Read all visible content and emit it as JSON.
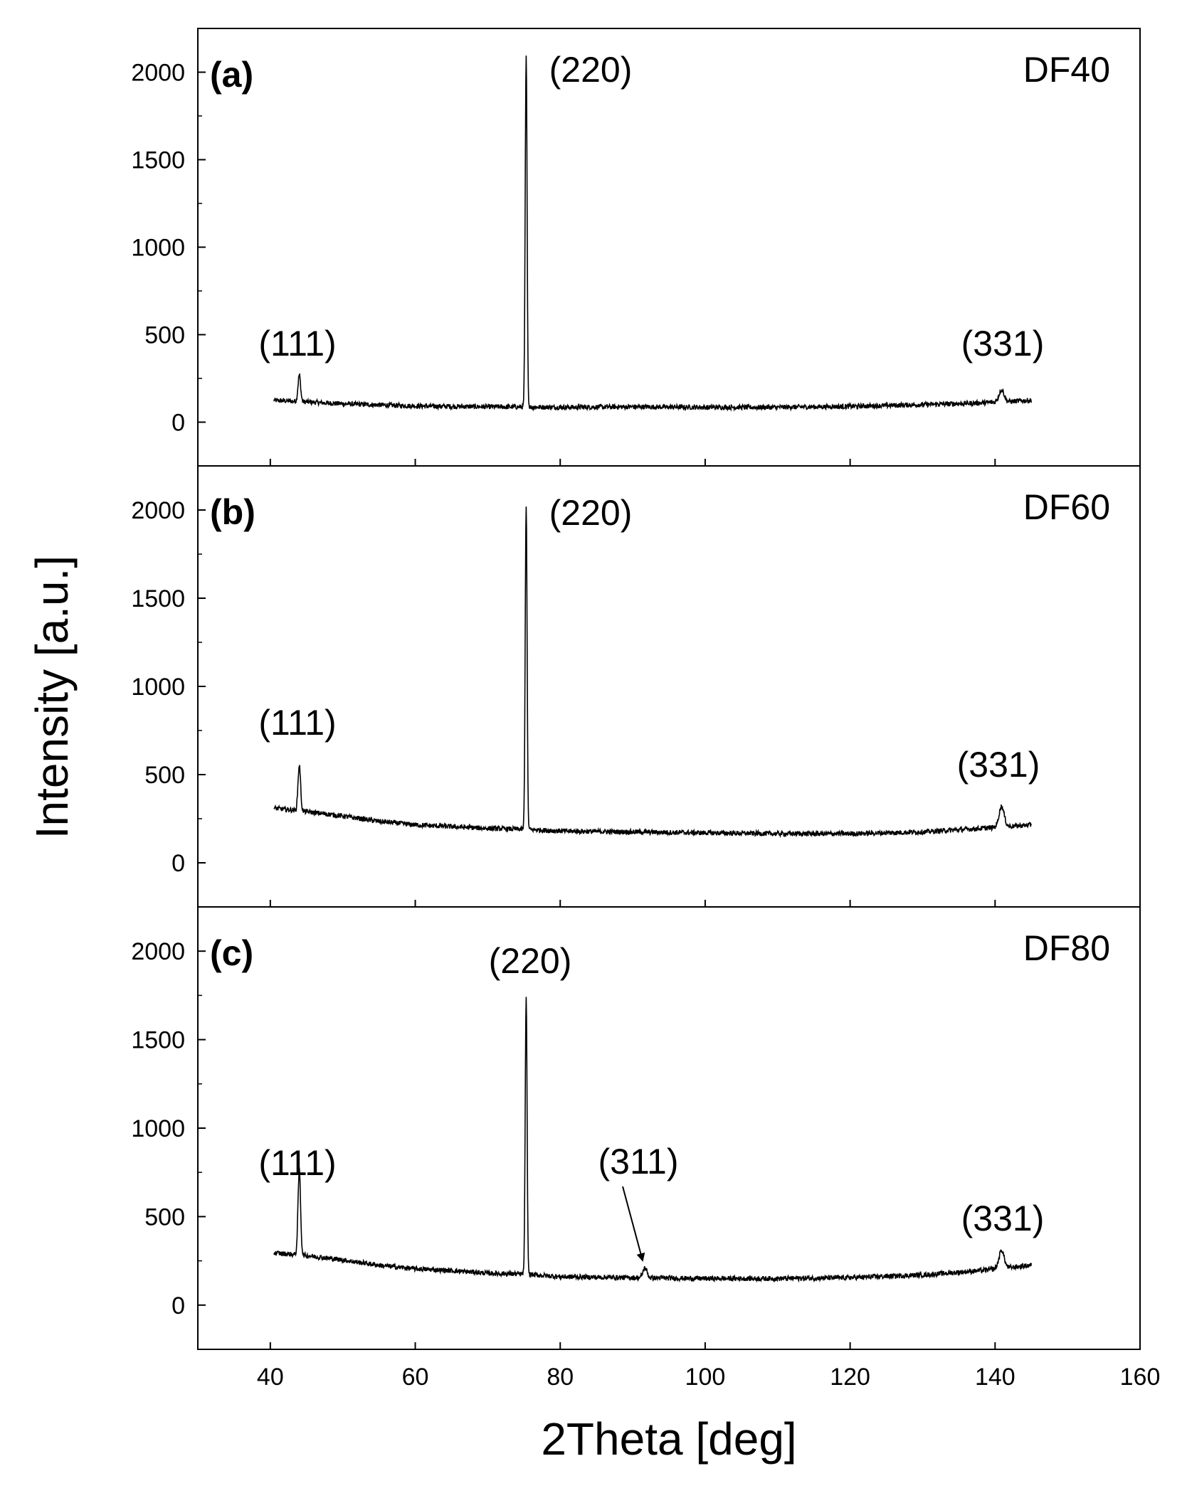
{
  "chart_data": {
    "type": "line",
    "xlabel": "2Theta [deg]",
    "ylabel": "Intensity [a.u.]",
    "xlim": [
      30,
      160
    ],
    "ylim": [
      -250,
      2250
    ],
    "x_ticks": [
      "40",
      "60",
      "80",
      "100",
      "120",
      "140",
      "160"
    ],
    "y_ticks": [
      "0",
      "500",
      "1000",
      "1500",
      "2000"
    ],
    "panels": [
      {
        "letter": "(a)",
        "sample": "DF40",
        "baseline": [
          [
            40.5,
            125
          ],
          [
            50,
            105
          ],
          [
            60,
            92
          ],
          [
            70,
            88
          ],
          [
            80,
            85
          ],
          [
            90,
            88
          ],
          [
            100,
            85
          ],
          [
            110,
            85
          ],
          [
            120,
            90
          ],
          [
            130,
            100
          ],
          [
            138,
            110
          ],
          [
            145,
            125
          ]
        ],
        "peaks": [
          {
            "label": "(111)",
            "x": 44.0,
            "y": 270,
            "width": 0.25
          },
          {
            "label": "(220)",
            "x": 75.3,
            "y": 2090,
            "width": 0.18
          },
          {
            "label": "(331)",
            "x": 140.9,
            "y": 185,
            "width": 0.5
          }
        ]
      },
      {
        "letter": "(b)",
        "sample": "DF60",
        "baseline": [
          [
            40.5,
            310
          ],
          [
            45,
            290
          ],
          [
            50,
            265
          ],
          [
            55,
            235
          ],
          [
            60,
            215
          ],
          [
            65,
            205
          ],
          [
            70,
            195
          ],
          [
            75,
            190
          ],
          [
            80,
            180
          ],
          [
            90,
            175
          ],
          [
            100,
            170
          ],
          [
            110,
            165
          ],
          [
            120,
            165
          ],
          [
            130,
            175
          ],
          [
            138,
            195
          ],
          [
            145,
            215
          ]
        ],
        "peaks": [
          {
            "label": "(111)",
            "x": 44.0,
            "y": 555,
            "width": 0.25
          },
          {
            "label": "(220)",
            "x": 75.3,
            "y": 2030,
            "width": 0.18
          },
          {
            "label": "(331)",
            "x": 140.9,
            "y": 320,
            "width": 0.5
          }
        ]
      },
      {
        "letter": "(c)",
        "sample": "DF80",
        "baseline": [
          [
            40.5,
            295
          ],
          [
            45,
            280
          ],
          [
            50,
            255
          ],
          [
            55,
            225
          ],
          [
            60,
            205
          ],
          [
            65,
            195
          ],
          [
            70,
            180
          ],
          [
            75,
            175
          ],
          [
            80,
            160
          ],
          [
            90,
            155
          ],
          [
            100,
            150
          ],
          [
            110,
            150
          ],
          [
            120,
            155
          ],
          [
            130,
            170
          ],
          [
            138,
            195
          ],
          [
            145,
            225
          ]
        ],
        "peaks": [
          {
            "label": "(111)",
            "x": 44.0,
            "y": 765,
            "width": 0.25
          },
          {
            "label": "(220)",
            "x": 75.3,
            "y": 1730,
            "width": 0.18
          },
          {
            "label": "(311)",
            "x": 91.7,
            "y": 210,
            "width": 0.4
          },
          {
            "label": "(331)",
            "x": 140.9,
            "y": 310,
            "width": 0.5
          }
        ]
      }
    ]
  }
}
